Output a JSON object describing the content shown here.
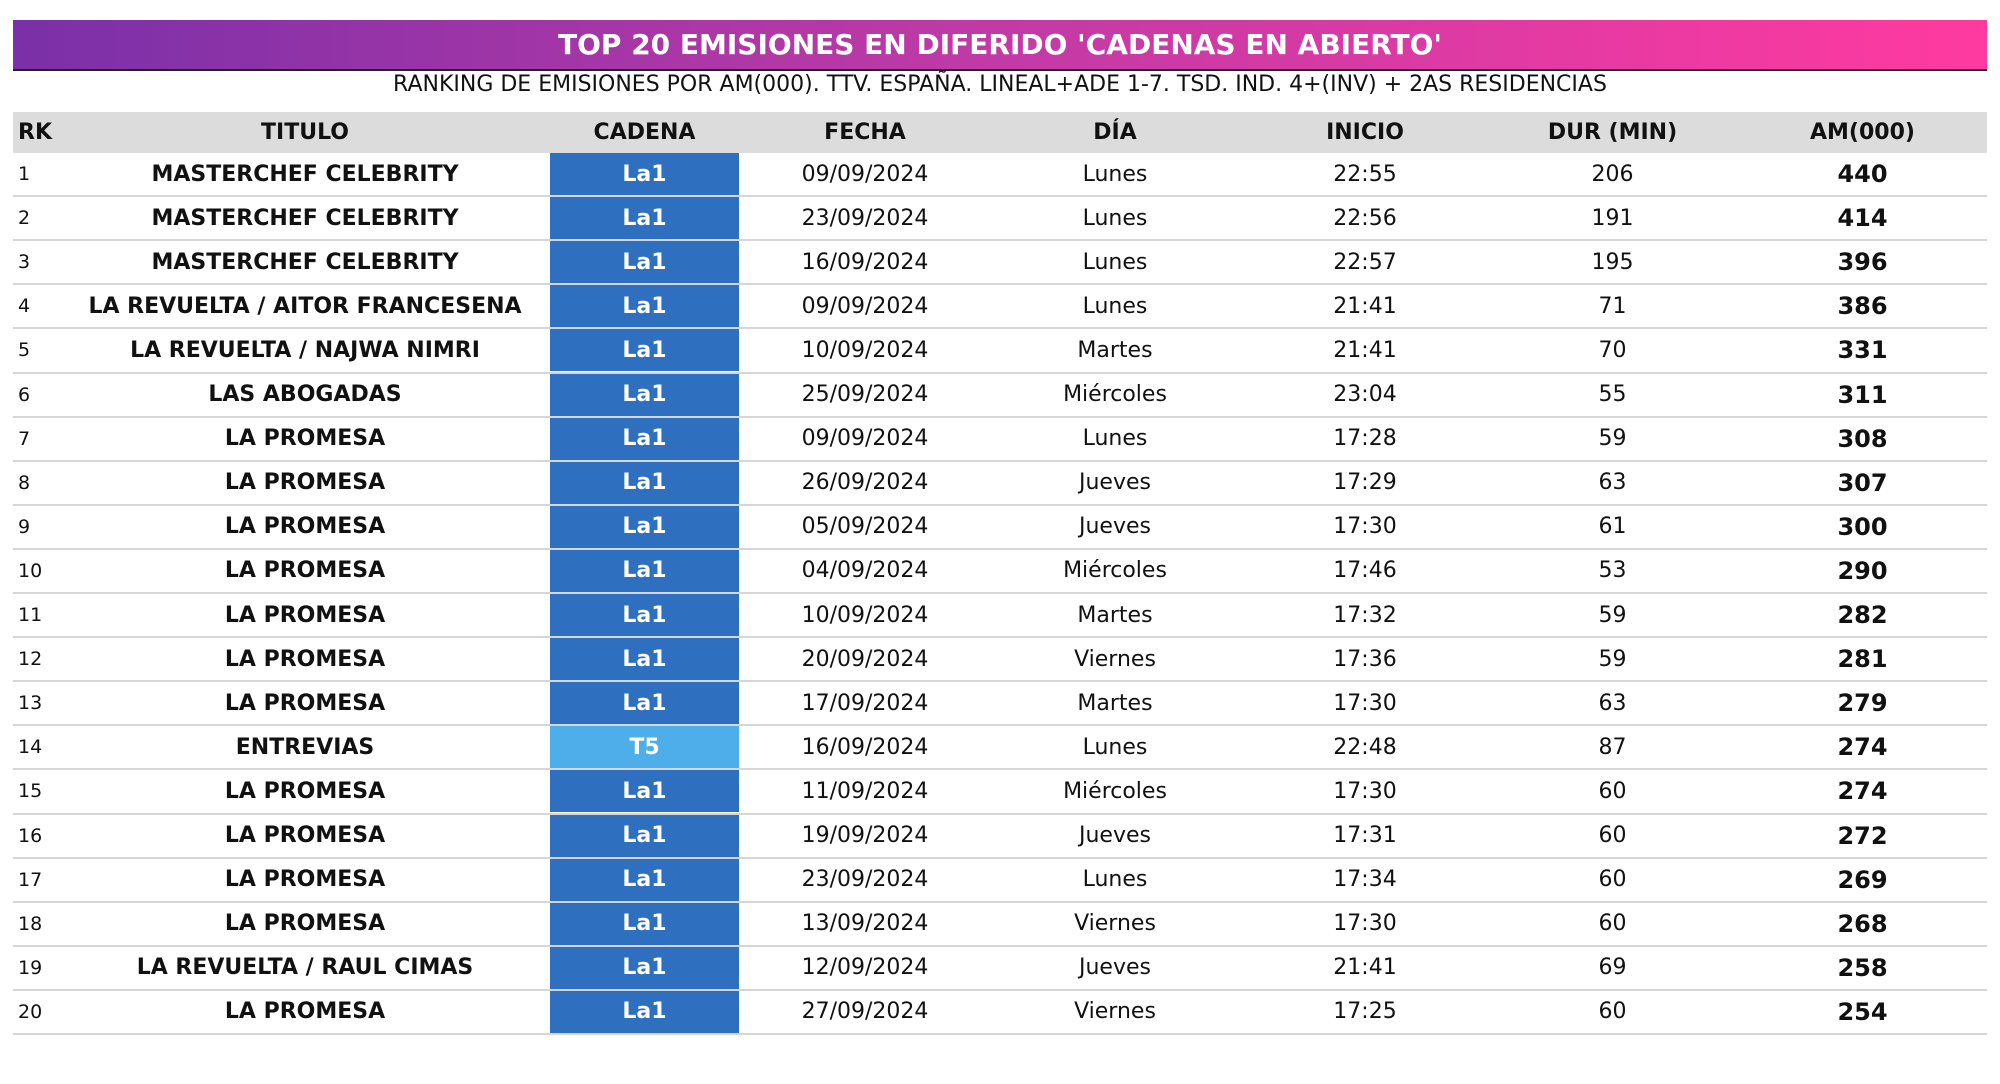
{
  "header": {
    "title": "TOP 20 EMISIONES EN DIFERIDO 'CADENAS EN ABIERTO'",
    "subtitle": "RANKING DE EMISIONES POR AM(000). TTV. ESPAÑA. LINEAL+ADE 1-7. TSD. IND. 4+(INV) + 2AS RESIDENCIAS"
  },
  "table": {
    "columns": [
      "RK",
      "TITULO",
      "CADENA",
      "FECHA",
      "DÍA",
      "INICIO",
      "DUR (MIN)",
      "AM(000)"
    ],
    "rows": [
      [
        1,
        "MASTERCHEF CELEBRITY",
        "La1",
        "09/09/2024",
        "Lunes",
        "22:55",
        206,
        440
      ],
      [
        2,
        "MASTERCHEF CELEBRITY",
        "La1",
        "23/09/2024",
        "Lunes",
        "22:56",
        191,
        414
      ],
      [
        3,
        "MASTERCHEF CELEBRITY",
        "La1",
        "16/09/2024",
        "Lunes",
        "22:57",
        195,
        396
      ],
      [
        4,
        "LA REVUELTA / AITOR FRANCESENA",
        "La1",
        "09/09/2024",
        "Lunes",
        "21:41",
        71,
        386
      ],
      [
        5,
        "LA REVUELTA / NAJWA NIMRI",
        "La1",
        "10/09/2024",
        "Martes",
        "21:41",
        70,
        331
      ],
      [
        6,
        "LAS ABOGADAS",
        "La1",
        "25/09/2024",
        "Miércoles",
        "23:04",
        55,
        311
      ],
      [
        7,
        "LA PROMESA",
        "La1",
        "09/09/2024",
        "Lunes",
        "17:28",
        59,
        308
      ],
      [
        8,
        "LA PROMESA",
        "La1",
        "26/09/2024",
        "Jueves",
        "17:29",
        63,
        307
      ],
      [
        9,
        "LA PROMESA",
        "La1",
        "05/09/2024",
        "Jueves",
        "17:30",
        61,
        300
      ],
      [
        10,
        "LA PROMESA",
        "La1",
        "04/09/2024",
        "Miércoles",
        "17:46",
        53,
        290
      ],
      [
        11,
        "LA PROMESA",
        "La1",
        "10/09/2024",
        "Martes",
        "17:32",
        59,
        282
      ],
      [
        12,
        "LA PROMESA",
        "La1",
        "20/09/2024",
        "Viernes",
        "17:36",
        59,
        281
      ],
      [
        13,
        "LA PROMESA",
        "La1",
        "17/09/2024",
        "Martes",
        "17:30",
        63,
        279
      ],
      [
        14,
        "ENTREVIAS",
        "T5",
        "16/09/2024",
        "Lunes",
        "22:48",
        87,
        274
      ],
      [
        15,
        "LA PROMESA",
        "La1",
        "11/09/2024",
        "Miércoles",
        "17:30",
        60,
        274
      ],
      [
        16,
        "LA PROMESA",
        "La1",
        "19/09/2024",
        "Jueves",
        "17:31",
        60,
        272
      ],
      [
        17,
        "LA PROMESA",
        "La1",
        "23/09/2024",
        "Lunes",
        "17:34",
        60,
        269
      ],
      [
        18,
        "LA PROMESA",
        "La1",
        "13/09/2024",
        "Viernes",
        "17:30",
        60,
        268
      ],
      [
        19,
        "LA REVUELTA / RAUL CIMAS",
        "La1",
        "12/09/2024",
        "Jueves",
        "21:41",
        69,
        258
      ],
      [
        20,
        "LA PROMESA",
        "La1",
        "27/09/2024",
        "Viernes",
        "17:25",
        60,
        254
      ]
    ],
    "cadena_colors": [
      "#2f6fbf",
      "#2f6fbf",
      "#2f6fbf",
      "#2f6fbf",
      "#2f6fbf",
      "#2f6fbf",
      "#2f6fbf",
      "#2f6fbf",
      "#2f6fbf",
      "#2f6fbf",
      "#2f6fbf",
      "#2f6fbf",
      "#2f6fbf",
      "#4eaeea",
      "#2f6fbf",
      "#2f6fbf",
      "#2f6fbf",
      "#2f6fbf",
      "#2f6fbf",
      "#2f6fbf"
    ]
  }
}
